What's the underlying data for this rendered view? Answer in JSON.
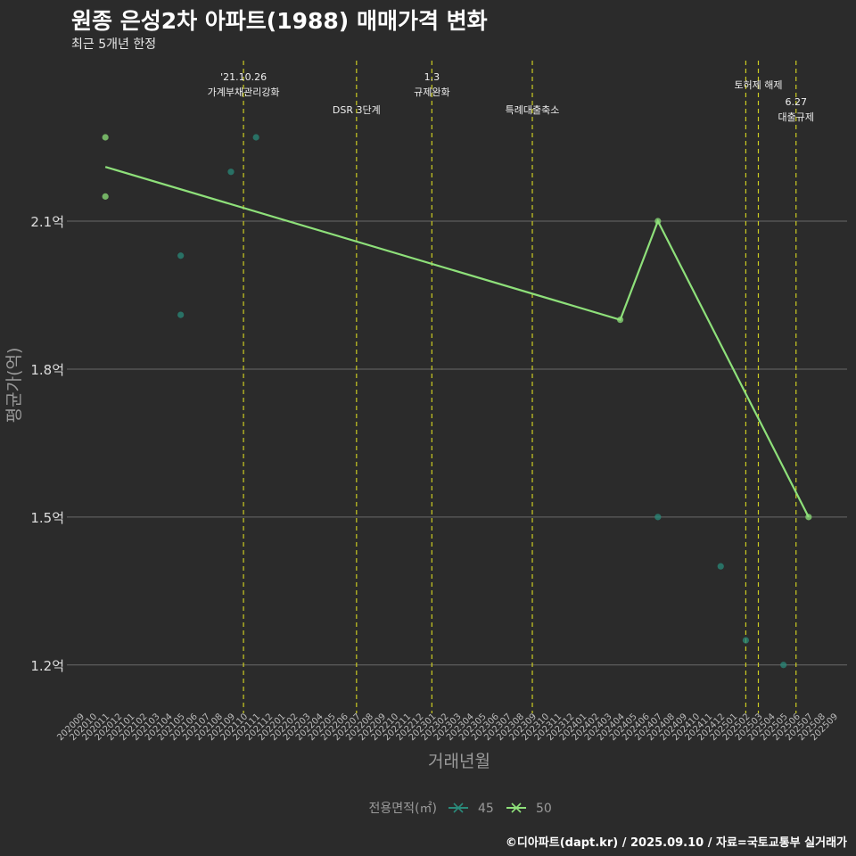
{
  "header": {
    "title": "원종 은성2차 아파트(1988) 매매가격 변화",
    "subtitle": "최근 5개년 한정"
  },
  "footer": {
    "credit": "©디아파트(dapt.kr) / 2025.09.10 / 자료=국토교통부 실거래가"
  },
  "colors": {
    "background": "#2b2b2b",
    "grid": "#6a6a6a",
    "event_line": "#cccc22",
    "s45": "#2a8a7a",
    "s50": "#8ee07a"
  },
  "chart_data": {
    "type": "line",
    "title": "원종 은성2차 아파트(1988) 매매가격 변화",
    "subtitle": "최근 5개년 한정",
    "xlabel": "거래년월",
    "ylabel": "평균가(억)",
    "categories": [
      "202009",
      "202010",
      "202011",
      "202012",
      "202101",
      "202102",
      "202103",
      "202104",
      "202105",
      "202106",
      "202107",
      "202108",
      "202109",
      "202110",
      "202111",
      "202112",
      "202201",
      "202202",
      "202203",
      "202204",
      "202205",
      "202206",
      "202207",
      "202208",
      "202209",
      "202210",
      "202211",
      "202212",
      "202301",
      "202302",
      "202303",
      "202304",
      "202305",
      "202306",
      "202307",
      "202308",
      "202309",
      "202310",
      "202311",
      "202312",
      "202401",
      "202402",
      "202403",
      "202404",
      "202405",
      "202406",
      "202407",
      "202408",
      "202409",
      "202410",
      "202411",
      "202412",
      "202501",
      "202502",
      "202503",
      "202504",
      "202505",
      "202506",
      "202507",
      "202508",
      "202509"
    ],
    "y_ticks": [
      {
        "value": 1.2,
        "label": "1.2억"
      },
      {
        "value": 1.5,
        "label": "1.5억"
      },
      {
        "value": 1.8,
        "label": "1.8억"
      },
      {
        "value": 2.1,
        "label": "2.1억"
      }
    ],
    "ylim": [
      1.12,
      2.44
    ],
    "grid": "horizontal",
    "legend": {
      "title": "전용면적(㎡)",
      "position": "bottom",
      "entries": [
        {
          "name": "45",
          "color": "#2a8a7a"
        },
        {
          "name": "50",
          "color": "#8ee07a"
        }
      ]
    },
    "series": [
      {
        "name": "45",
        "color": "#2a8a7a",
        "points": [
          {
            "x": "202105",
            "y": 2.03
          },
          {
            "x": "202105",
            "y": 1.91
          },
          {
            "x": "202109",
            "y": 2.2
          },
          {
            "x": "202111",
            "y": 2.27
          },
          {
            "x": "202407",
            "y": 1.5
          },
          {
            "x": "202412",
            "y": 1.4
          },
          {
            "x": "202502",
            "y": 1.25
          },
          {
            "x": "202505",
            "y": 1.2
          }
        ]
      },
      {
        "name": "50",
        "color": "#8ee07a",
        "points": [
          {
            "x": "202011",
            "y": 2.27
          },
          {
            "x": "202011",
            "y": 2.15
          },
          {
            "x": "202404",
            "y": 1.9
          },
          {
            "x": "202407",
            "y": 2.1
          },
          {
            "x": "202507",
            "y": 1.5
          }
        ],
        "trend_line": [
          {
            "x": "202011",
            "y": 2.21
          },
          {
            "x": "202404",
            "y": 1.9
          },
          {
            "x": "202407",
            "y": 2.1
          },
          {
            "x": "202507",
            "y": 1.5
          }
        ]
      }
    ],
    "events": [
      {
        "x": "202110",
        "label": "'21.10.26\n가계부채관리강화",
        "row": 0
      },
      {
        "x": "202207",
        "label": "DSR 3단계",
        "row": 2
      },
      {
        "x": "202301",
        "label": "1.3\n규제완화",
        "row": 0
      },
      {
        "x": "202309",
        "label": "특례대출축소",
        "row": 2
      },
      {
        "x": "202502",
        "label": "",
        "row": 1
      },
      {
        "x": "202503",
        "label": "토허제 해제",
        "row": 1
      },
      {
        "x": "202506",
        "label": "6.27\n대출규제",
        "row": 3
      }
    ]
  }
}
